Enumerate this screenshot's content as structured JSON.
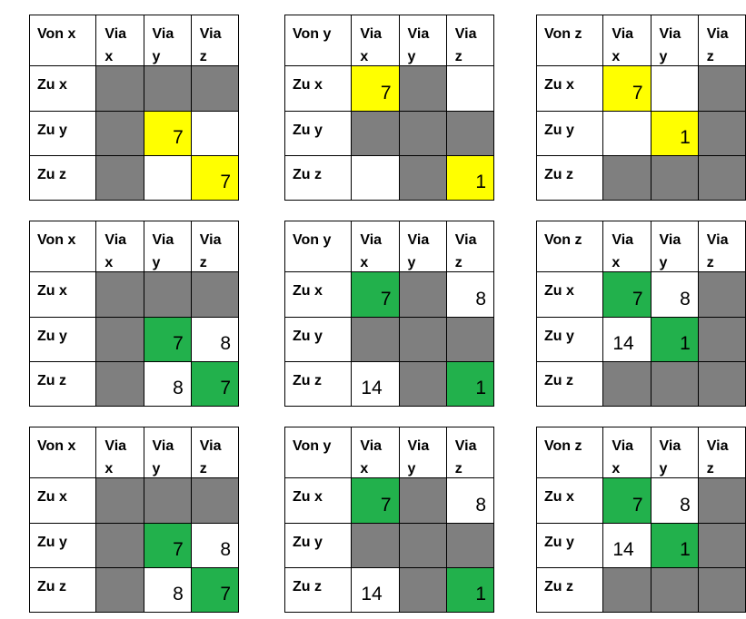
{
  "tables": [
    {
      "corner": "Von x",
      "headers": [
        "Via\nx",
        "Via\ny",
        "Via\nz"
      ],
      "rows": [
        {
          "label": "Zu x",
          "cells": [
            {
              "c": "g",
              "v": ""
            },
            {
              "c": "g",
              "v": ""
            },
            {
              "c": "g",
              "v": ""
            }
          ]
        },
        {
          "label": "Zu y",
          "cells": [
            {
              "c": "g",
              "v": ""
            },
            {
              "c": "y",
              "v": "7"
            },
            {
              "c": "w",
              "v": ""
            }
          ]
        },
        {
          "label": "Zu z",
          "cells": [
            {
              "c": "g",
              "v": ""
            },
            {
              "c": "w",
              "v": ""
            },
            {
              "c": "y",
              "v": "7"
            }
          ]
        }
      ]
    },
    {
      "corner": "Von y",
      "headers": [
        "Via\nx",
        "Via\ny",
        "Via\nz"
      ],
      "rows": [
        {
          "label": "Zu x",
          "cells": [
            {
              "c": "y",
              "v": "7"
            },
            {
              "c": "g",
              "v": ""
            },
            {
              "c": "w",
              "v": ""
            }
          ]
        },
        {
          "label": "Zu y",
          "cells": [
            {
              "c": "g",
              "v": ""
            },
            {
              "c": "g",
              "v": ""
            },
            {
              "c": "g",
              "v": ""
            }
          ]
        },
        {
          "label": "Zu z",
          "cells": [
            {
              "c": "w",
              "v": ""
            },
            {
              "c": "g",
              "v": ""
            },
            {
              "c": "y",
              "v": "1"
            }
          ]
        }
      ]
    },
    {
      "corner": "Von z",
      "headers": [
        "Via\nx",
        "Via\ny",
        "Via\nz"
      ],
      "rows": [
        {
          "label": "Zu x",
          "cells": [
            {
              "c": "y",
              "v": "7"
            },
            {
              "c": "w",
              "v": ""
            },
            {
              "c": "g",
              "v": ""
            }
          ]
        },
        {
          "label": "Zu y",
          "cells": [
            {
              "c": "w",
              "v": ""
            },
            {
              "c": "y",
              "v": "1"
            },
            {
              "c": "g",
              "v": ""
            }
          ]
        },
        {
          "label": "Zu z",
          "cells": [
            {
              "c": "g",
              "v": ""
            },
            {
              "c": "g",
              "v": ""
            },
            {
              "c": "g",
              "v": ""
            }
          ]
        }
      ]
    },
    {
      "corner": "Von x",
      "headers": [
        "Via\nx",
        "Via\ny",
        "Via\nz"
      ],
      "rows": [
        {
          "label": "Zu x",
          "cells": [
            {
              "c": "g",
              "v": ""
            },
            {
              "c": "g",
              "v": ""
            },
            {
              "c": "g",
              "v": ""
            }
          ]
        },
        {
          "label": "Zu y",
          "cells": [
            {
              "c": "g",
              "v": ""
            },
            {
              "c": "gr",
              "v": "7"
            },
            {
              "c": "w",
              "v": "8"
            }
          ]
        },
        {
          "label": "Zu z",
          "cells": [
            {
              "c": "g",
              "v": ""
            },
            {
              "c": "w",
              "v": "8"
            },
            {
              "c": "gr",
              "v": "7"
            }
          ]
        }
      ]
    },
    {
      "corner": "Von y",
      "headers": [
        "Via\nx",
        "Via\ny",
        "Via\nz"
      ],
      "rows": [
        {
          "label": "Zu x",
          "cells": [
            {
              "c": "gr",
              "v": "7"
            },
            {
              "c": "g",
              "v": ""
            },
            {
              "c": "w",
              "v": "8"
            }
          ]
        },
        {
          "label": "Zu y",
          "cells": [
            {
              "c": "g",
              "v": ""
            },
            {
              "c": "g",
              "v": ""
            },
            {
              "c": "g",
              "v": ""
            }
          ]
        },
        {
          "label": "Zu z",
          "cells": [
            {
              "c": "w",
              "v": "14"
            },
            {
              "c": "g",
              "v": ""
            },
            {
              "c": "gr",
              "v": "1"
            }
          ]
        }
      ]
    },
    {
      "corner": "Von z",
      "headers": [
        "Via\nx",
        "Via\ny",
        "Via\nz"
      ],
      "rows": [
        {
          "label": "Zu x",
          "cells": [
            {
              "c": "gr",
              "v": "7"
            },
            {
              "c": "w",
              "v": "8"
            },
            {
              "c": "g",
              "v": ""
            }
          ]
        },
        {
          "label": "Zu y",
          "cells": [
            {
              "c": "w",
              "v": "14"
            },
            {
              "c": "gr",
              "v": "1"
            },
            {
              "c": "g",
              "v": ""
            }
          ]
        },
        {
          "label": "Zu z",
          "cells": [
            {
              "c": "g",
              "v": ""
            },
            {
              "c": "g",
              "v": ""
            },
            {
              "c": "g",
              "v": ""
            }
          ]
        }
      ]
    },
    {
      "corner": "Von x",
      "headers": [
        "Via\nx",
        "Via\ny",
        "Via\nz"
      ],
      "rows": [
        {
          "label": "Zu x",
          "cells": [
            {
              "c": "g",
              "v": ""
            },
            {
              "c": "g",
              "v": ""
            },
            {
              "c": "g",
              "v": ""
            }
          ]
        },
        {
          "label": "Zu y",
          "cells": [
            {
              "c": "g",
              "v": ""
            },
            {
              "c": "gr",
              "v": "7"
            },
            {
              "c": "w",
              "v": "8"
            }
          ]
        },
        {
          "label": "Zu z",
          "cells": [
            {
              "c": "g",
              "v": ""
            },
            {
              "c": "w",
              "v": "8"
            },
            {
              "c": "gr",
              "v": "7"
            }
          ]
        }
      ]
    },
    {
      "corner": "Von y",
      "headers": [
        "Via\nx",
        "Via\ny",
        "Via\nz"
      ],
      "rows": [
        {
          "label": "Zu x",
          "cells": [
            {
              "c": "gr",
              "v": "7"
            },
            {
              "c": "g",
              "v": ""
            },
            {
              "c": "w",
              "v": "8"
            }
          ]
        },
        {
          "label": "Zu y",
          "cells": [
            {
              "c": "g",
              "v": ""
            },
            {
              "c": "g",
              "v": ""
            },
            {
              "c": "g",
              "v": ""
            }
          ]
        },
        {
          "label": "Zu z",
          "cells": [
            {
              "c": "w",
              "v": "14"
            },
            {
              "c": "g",
              "v": ""
            },
            {
              "c": "gr",
              "v": "1"
            }
          ]
        }
      ]
    },
    {
      "corner": "Von z",
      "headers": [
        "Via\nx",
        "Via\ny",
        "Via\nz"
      ],
      "rows": [
        {
          "label": "Zu x",
          "cells": [
            {
              "c": "gr",
              "v": "7"
            },
            {
              "c": "w",
              "v": "8"
            },
            {
              "c": "g",
              "v": ""
            }
          ]
        },
        {
          "label": "Zu y",
          "cells": [
            {
              "c": "w",
              "v": "14"
            },
            {
              "c": "gr",
              "v": "1"
            },
            {
              "c": "g",
              "v": ""
            }
          ]
        },
        {
          "label": "Zu z",
          "cells": [
            {
              "c": "g",
              "v": ""
            },
            {
              "c": "g",
              "v": ""
            },
            {
              "c": "g",
              "v": ""
            }
          ]
        }
      ]
    }
  ]
}
